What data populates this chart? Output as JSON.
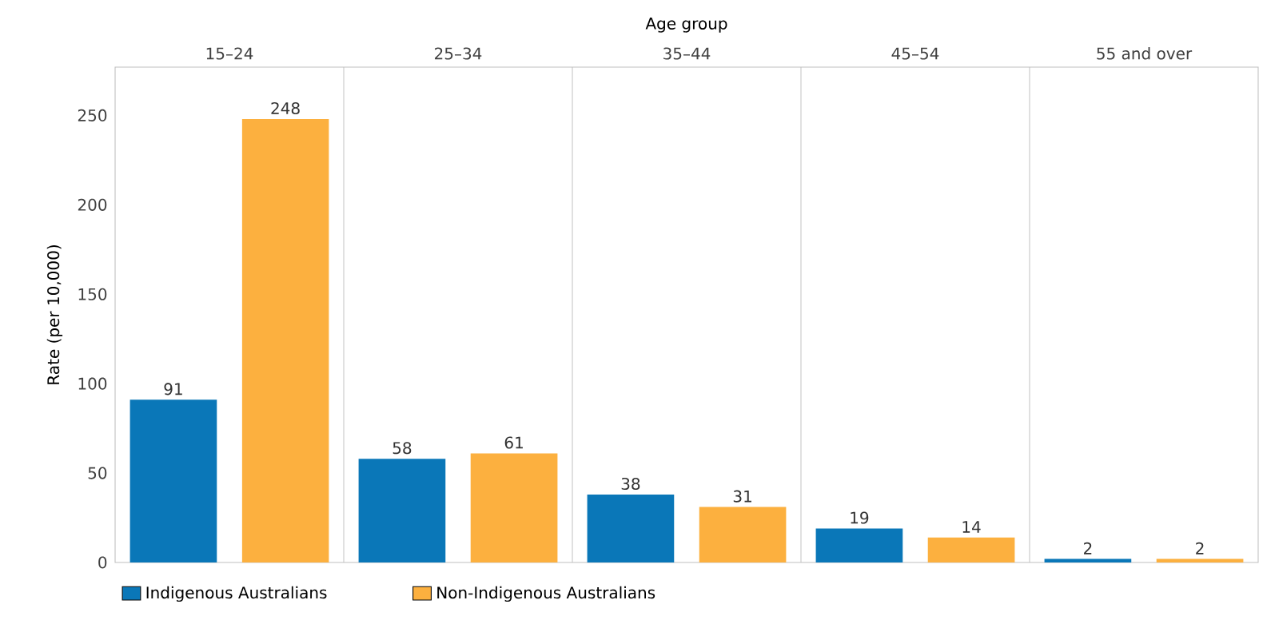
{
  "chart_data": {
    "type": "bar",
    "xlabel": "Age group",
    "ylabel": "Rate (per 10,000)",
    "categories": [
      "15–24",
      "25–34",
      "35–44",
      "45–54",
      "55 and over"
    ],
    "series": [
      {
        "name": "Indigenous Australians",
        "color": "#0a77b8",
        "values": [
          91,
          58,
          38,
          19,
          2
        ]
      },
      {
        "name": "Non-Indigenous Australians",
        "color": "#fcb03f",
        "values": [
          248,
          61,
          31,
          14,
          2
        ]
      }
    ],
    "ylim": [
      0,
      277
    ],
    "yticks": [
      0,
      50,
      100,
      150,
      200,
      250
    ],
    "data_labels": true,
    "grid": "x",
    "legend": "bottom left"
  }
}
